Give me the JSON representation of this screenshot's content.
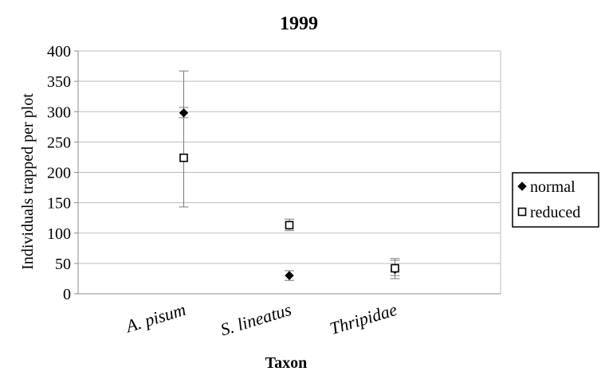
{
  "chart_data": {
    "type": "scatter",
    "title": "1999",
    "xlabel": "Taxon",
    "ylabel": "Individuals trapped per plot",
    "categories": [
      "A. pisum",
      "S. lineatus",
      "Thripidae"
    ],
    "ylim": [
      0,
      400
    ],
    "yticks": [
      0,
      50,
      100,
      150,
      200,
      250,
      300,
      350,
      400
    ],
    "grid": true,
    "legend_position": "right",
    "series": [
      {
        "name": "normal",
        "marker": "diamond-filled",
        "color": "#000000",
        "values": [
          298,
          30,
          40
        ],
        "error_low": [
          290,
          22,
          25
        ],
        "error_high": [
          307,
          38,
          55
        ]
      },
      {
        "name": "reduced",
        "marker": "square-open",
        "color": "#000000",
        "values": [
          224,
          113,
          42
        ],
        "error_low": [
          143,
          104,
          30
        ],
        "error_high": [
          367,
          123,
          58
        ]
      }
    ]
  }
}
